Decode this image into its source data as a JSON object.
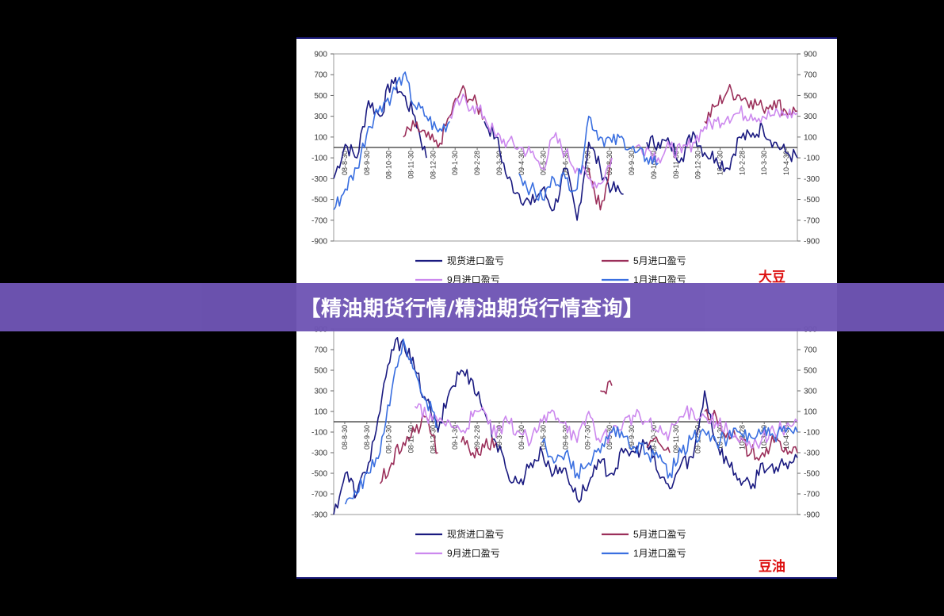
{
  "banner": {
    "title": "【精油期货行情/精油期货行情查询】"
  },
  "colors": {
    "spot": "#1a1a80",
    "may": "#9b2f5a",
    "sep": "#cc88ee",
    "jan": "#3a6fe0",
    "zero_line": "#333333",
    "product_label": "#dd1111",
    "banner": "#6f55b5"
  },
  "chart_data": [
    {
      "type": "line",
      "product_label": "大豆",
      "ylim": [
        -900,
        900
      ],
      "yticks": [
        900,
        700,
        500,
        300,
        100,
        -100,
        -300,
        -500,
        -700,
        -900
      ],
      "x_tick_labels": [
        "08-8-30",
        "08-9-30",
        "08-10-30",
        "08-11-30",
        "08-12-30",
        "09-1-30",
        "09-2-28",
        "09-3-30",
        "09-4-30",
        "09-5-30",
        "09-6-30",
        "09-7-30",
        "09-8-30",
        "09-9-30",
        "09-10-30",
        "09-11-30",
        "09-12-30",
        "10-1-30",
        "10-2-28",
        "10-3-30",
        "10-4-30"
      ],
      "series": [
        {
          "name": "现货进口盈亏",
          "color_key": "spot",
          "values": [
            -300,
            30,
            -100,
            450,
            300,
            650,
            500,
            300,
            -100,
            null,
            null,
            null,
            null,
            250,
            100,
            -300,
            -450,
            -550,
            -400,
            -600,
            -200,
            -700,
            50,
            -200,
            -400,
            -450,
            null,
            50,
            50,
            30,
            -100,
            150,
            -50,
            -100,
            -200,
            100,
            100,
            200,
            50,
            -50,
            -100
          ]
        },
        {
          "name": "5月进口盈亏",
          "color_key": "may",
          "values": [
            null,
            null,
            null,
            null,
            null,
            null,
            100,
            200,
            100,
            0,
            300,
            550,
            450,
            300,
            null,
            null,
            null,
            null,
            null,
            null,
            null,
            null,
            -200,
            -600,
            -100,
            null,
            null,
            null,
            null,
            null,
            null,
            null,
            250,
            400,
            550,
            500,
            450,
            380,
            450,
            350,
            350
          ]
        },
        {
          "name": "9月进口盈亏",
          "color_key": "sep",
          "values": [
            null,
            null,
            null,
            null,
            null,
            null,
            null,
            null,
            null,
            null,
            300,
            450,
            400,
            300,
            100,
            50,
            0,
            -50,
            -200,
            100,
            -50,
            -200,
            -300,
            -350,
            -100,
            null,
            0,
            0,
            -100,
            0,
            -50,
            50,
            200,
            250,
            300,
            330,
            320,
            300,
            310,
            320,
            330
          ]
        },
        {
          "name": "1月进口盈亏",
          "color_key": "jan",
          "values": [
            -600,
            -400,
            -200,
            200,
            400,
            500,
            700,
            400,
            300,
            150,
            250,
            null,
            null,
            null,
            null,
            null,
            -250,
            -400,
            -500,
            -300,
            -300,
            -400,
            300,
            100,
            50,
            80,
            -50,
            -100,
            -150,
            null,
            null,
            null,
            null,
            null,
            null,
            null,
            null,
            null,
            null,
            null,
            null
          ]
        }
      ]
    },
    {
      "type": "line",
      "product_label": "豆油",
      "ylim": [
        -900,
        900
      ],
      "yticks": [
        900,
        700,
        500,
        300,
        100,
        -100,
        -300,
        -500,
        -700,
        -900
      ],
      "x_tick_labels": [
        "08-8-30",
        "08-9-30",
        "08-10-30",
        "08-11-30",
        "08-12-30",
        "09-1-30",
        "09-2-28",
        "09-3-30",
        "09-4-30",
        "09-5-30",
        "09-6-30",
        "09-7-30",
        "09-8-30",
        "09-9-30",
        "09-10-30",
        "09-11-30",
        "09-12-30",
        "10-1-30",
        "10-2-28",
        "10-3-30",
        "10-4-30"
      ],
      "series": [
        {
          "name": "现货进口盈亏",
          "color_key": "spot",
          "values": [
            -900,
            -500,
            -700,
            -400,
            100,
            700,
            800,
            500,
            200,
            -100,
            300,
            500,
            400,
            100,
            -200,
            -500,
            -600,
            -400,
            -300,
            -500,
            -450,
            -750,
            -600,
            -400,
            -500,
            -300,
            -300,
            -200,
            -500,
            -650,
            -400,
            -350,
            300,
            -200,
            -400,
            -550,
            -650,
            -400,
            -500,
            -400,
            -350
          ]
        },
        {
          "name": "5月进口盈亏",
          "color_key": "may",
          "values": [
            null,
            null,
            null,
            null,
            -600,
            -400,
            -200,
            -100,
            50,
            -300,
            null,
            -200,
            -300,
            -250,
            -200,
            null,
            null,
            null,
            null,
            null,
            -400,
            null,
            null,
            300,
            350,
            null,
            null,
            -250,
            -200,
            -300,
            null,
            null,
            100,
            50,
            -100,
            -200,
            -300,
            -300,
            -200,
            -250,
            -300
          ]
        },
        {
          "name": "9月进口盈亏",
          "color_key": "sep",
          "values": [
            null,
            null,
            null,
            null,
            null,
            null,
            null,
            150,
            50,
            0,
            0,
            -100,
            50,
            100,
            -150,
            0,
            -100,
            -200,
            0,
            100,
            0,
            -200,
            100,
            -200,
            -100,
            0,
            50,
            0,
            -100,
            -100,
            50,
            100,
            50,
            0,
            -100,
            -200,
            -250,
            -150,
            -100,
            -50,
            0
          ]
        },
        {
          "name": "1月进口盈亏",
          "color_key": "jan",
          "values": [
            null,
            -800,
            -700,
            -500,
            -300,
            300,
            800,
            500,
            200,
            -50,
            null,
            null,
            null,
            null,
            null,
            null,
            null,
            null,
            -200,
            -400,
            -300,
            -500,
            -400,
            -300,
            -100,
            -150,
            -250,
            -300,
            -350,
            -500,
            -300,
            -150,
            -100,
            -200,
            -150,
            -100,
            -150,
            -100,
            -150,
            -100,
            -100
          ]
        }
      ]
    }
  ]
}
